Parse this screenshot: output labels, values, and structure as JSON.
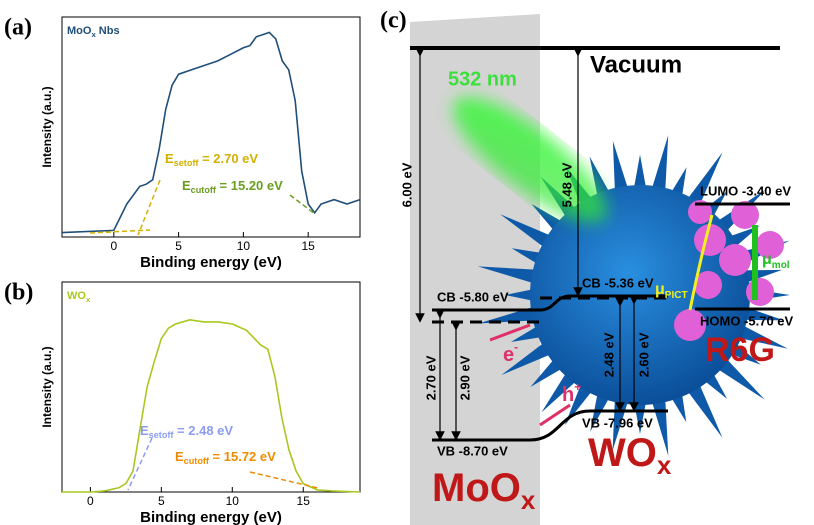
{
  "chart_data": [
    {
      "type": "line",
      "panel_label": "(a)",
      "title": [
        "MoO",
        "x",
        " Nbs"
      ],
      "xlabel": "Binding energy (eV)",
      "ylabel": "Intensity (a.u.)",
      "color": "#1f4e79",
      "x": [
        -4,
        0,
        1,
        2,
        2.5,
        3,
        3.5,
        4,
        4.5,
        5,
        6,
        7,
        8,
        9,
        10,
        10.5,
        11,
        11.5,
        12,
        12.5,
        13,
        13.5,
        14,
        14.5,
        15,
        15.5,
        16,
        17,
        18,
        19
      ],
      "values": [
        2,
        3,
        15,
        23,
        24,
        26,
        40,
        58,
        69,
        74,
        76,
        78,
        80,
        83,
        86,
        87,
        91,
        92,
        93,
        90,
        80,
        76,
        62,
        30,
        15,
        11,
        15,
        17,
        15,
        17
      ],
      "xlim": [
        -4,
        19
      ],
      "ylim": [
        0,
        100
      ],
      "xticks": [
        0,
        5,
        10,
        15
      ],
      "annotations": [
        {
          "text": [
            "E",
            "setoff",
            " = 2.70 eV"
          ],
          "color": "#d4b000"
        },
        {
          "text": [
            "E",
            "cutoff",
            " = 15.20 eV"
          ],
          "color": "#6b9e1f"
        }
      ]
    },
    {
      "type": "line",
      "panel_label": "(b)",
      "title": [
        "WO",
        "x"
      ],
      "xlabel": "Binding energy (eV)",
      "ylabel": "Intensity (a.u.)",
      "color": "#a8c820",
      "x": [
        -2,
        0,
        1,
        2,
        2.5,
        3,
        3.5,
        4,
        4.5,
        5,
        5.5,
        6,
        7,
        8,
        9,
        10,
        11,
        12,
        12.5,
        13,
        13.5,
        14,
        14.5,
        15,
        16,
        17,
        19
      ],
      "values": [
        0,
        0,
        0.5,
        2,
        4,
        10,
        30,
        50,
        62,
        73,
        78,
        80,
        82,
        81,
        81,
        80,
        77,
        70,
        68,
        55,
        35,
        20,
        10,
        4,
        1,
        0.5,
        0
      ],
      "xlim": [
        -2,
        19
      ],
      "ylim": [
        0,
        100
      ],
      "xticks": [
        0,
        5,
        10,
        15
      ],
      "annotations": [
        {
          "text": [
            "E",
            "setoff",
            " = 2.48 eV"
          ],
          "color": "#8c9cf0"
        },
        {
          "text": [
            "E",
            "cutoff",
            " = 15.72 eV"
          ],
          "color": "#f08c00"
        }
      ]
    }
  ],
  "diagram": {
    "panel_label": "(c)",
    "vacuum": "Vacuum",
    "laser": "532 nm",
    "gap_moox": "6.00 eV",
    "gap_wox": "5.48 eV",
    "cb_moox": "CB -5.80 eV",
    "cb_wox": "CB -5.36 eV",
    "lumo": "LUMO -3.40 eV",
    "homo": "HOMO -5.70 eV",
    "bg_moox_1": "2.70 eV",
    "bg_moox_2": "2.90 eV",
    "bg_wox_1": "2.48 eV",
    "bg_wox_2": "2.60 eV",
    "vb_moox": "VB -8.70 eV",
    "vb_wox": "VB -7.96 eV",
    "electron": [
      "e",
      "-"
    ],
    "hole": [
      "h",
      "+"
    ],
    "mu_pict": [
      "μ",
      "PICT"
    ],
    "mu_mol": [
      "μ",
      "mol"
    ],
    "dye": "R6G",
    "moox": [
      "MoO",
      "x"
    ],
    "wox": [
      "WO",
      "x"
    ]
  }
}
